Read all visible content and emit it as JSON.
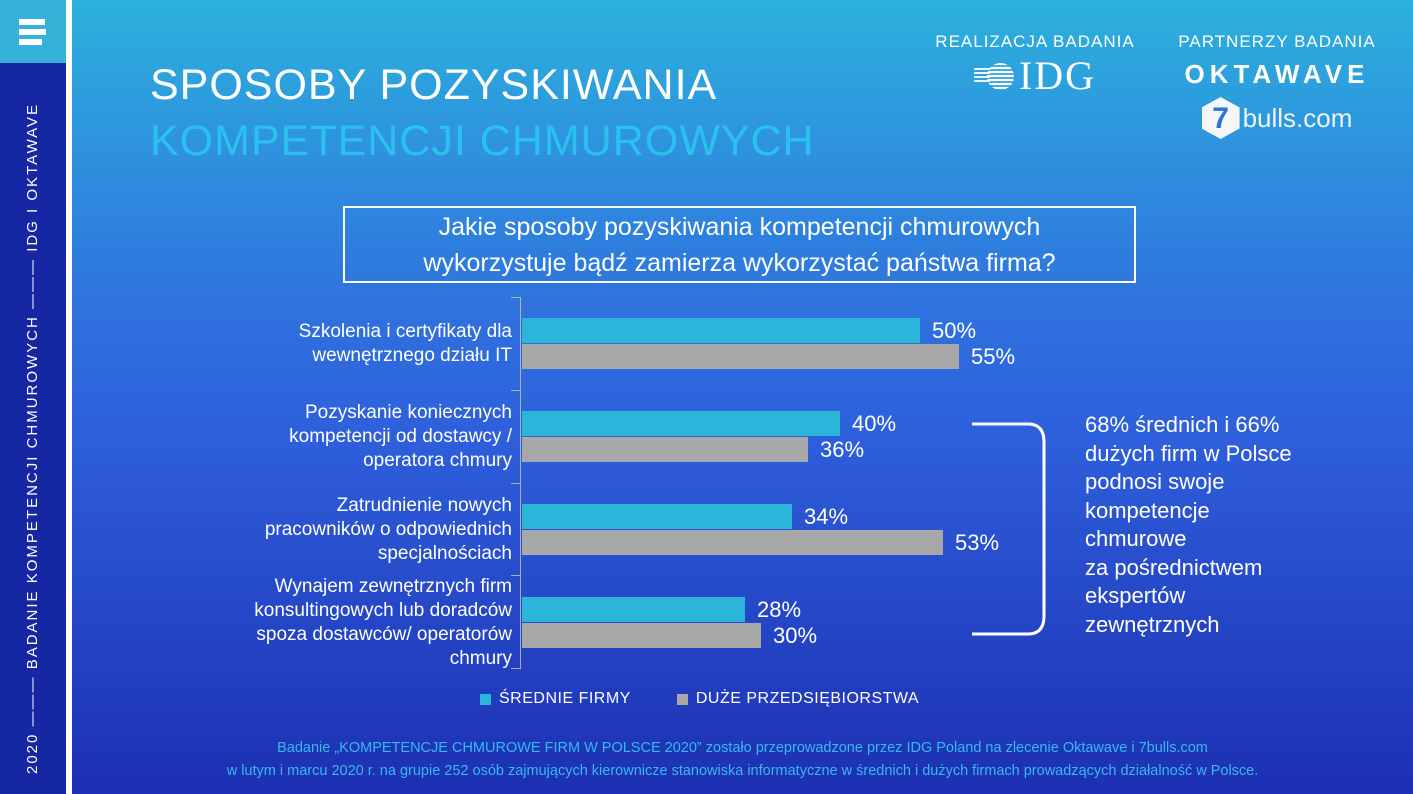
{
  "sidebar": {
    "vertical_text": "2020 ——— BADANIE KOMPETENCJI CHMUROWYCH ——— IDG I OKTAWAVE"
  },
  "header": {
    "title_line1": "SPOSOBY POZYSKIWANIA",
    "title_line2": "KOMPETENCJI CHMUROWYCH"
  },
  "logos": {
    "realizacja_label": "REALIZACJA BADANIA",
    "partnerzy_label": "PARTNERZY BADANIA",
    "idg_text": "IDG",
    "oktawave_text": "OKTAWAVE",
    "sevenbulls_number": "7",
    "sevenbulls_text": "bulls.com"
  },
  "question": "Jakie sposoby pozyskiwania kompetencji chmurowych wykorzystuje bądź zamierza wykorzystać państwa firma?",
  "chart_data": {
    "type": "bar",
    "orientation": "horizontal",
    "title": "Jakie sposoby pozyskiwania kompetencji chmurowych wykorzystuje bądź zamierza wykorzystać państwa firma?",
    "categories": [
      "Szkolenia i certyfikaty dla wewnętrznego działu IT",
      "Pozyskanie koniecznych kompetencji od dostawcy / operatora chmury",
      "Zatrudnienie nowych pracowników o odpowiednich specjalnościach",
      "Wynajem zewnętrznych firm konsultingowych lub doradców spoza dostawców/ operatorów chmury"
    ],
    "series": [
      {
        "name": "ŚREDNIE FIRMY",
        "color": "#2bb5da",
        "values": [
          50,
          40,
          34,
          28
        ]
      },
      {
        "name": "DUŻE PRZEDSIĘBIORSTWA",
        "color": "#a8a8a8",
        "values": [
          55,
          36,
          53,
          30
        ]
      }
    ],
    "value_suffix": "%",
    "xlim": [
      0,
      60
    ],
    "grid": false,
    "legend_position": "bottom"
  },
  "annotation": {
    "text": "68% średnich i 66%\ndużych firm w Polsce\npodnosi swoje\nkompetencje\nchmurowe\nza pośrednictwem\nekspertów\nzewnętrznych"
  },
  "footer": {
    "line1": "Badanie „KOMPETENCJE CHMUROWE FIRM W POLSCE 2020”  zostało przeprowadzone przez IDG Poland  na zlecenie Oktawave i 7bulls.com",
    "line2": "w  lutym i marcu 2020 r. na grupie 252 osób zajmujących kierownicze stanowiska informatyczne w średnich i dużych firmach prowadzących działalność w Polsce."
  }
}
